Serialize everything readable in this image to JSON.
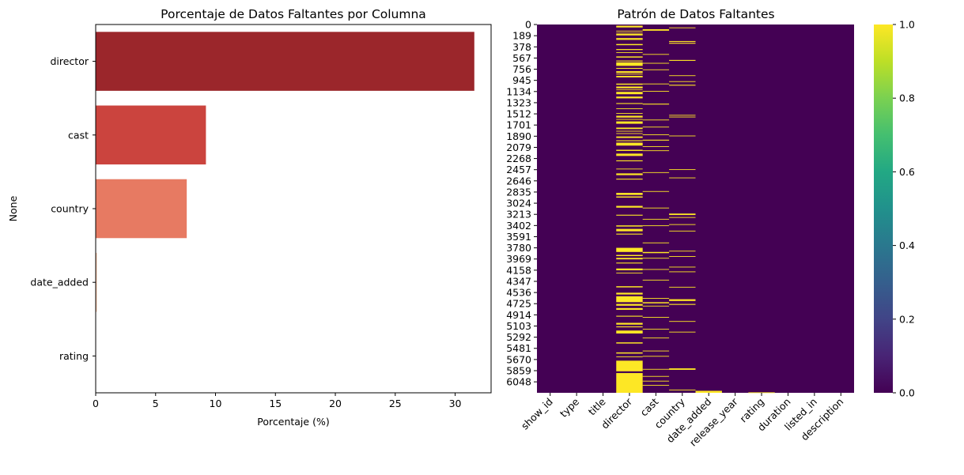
{
  "chart_data": [
    {
      "type": "bar",
      "orientation": "horizontal",
      "title": "Porcentaje de Datos Faltantes por Columna",
      "xlabel": "Porcentaje (%)",
      "ylabel": "None",
      "xlim": [
        0,
        33
      ],
      "xticks": [
        "0",
        "5",
        "10",
        "15",
        "20",
        "25",
        "30"
      ],
      "categories": [
        "director",
        "cast",
        "country",
        "date_added",
        "rating"
      ],
      "values": [
        31.6,
        9.2,
        7.6,
        0.1,
        0.03
      ],
      "colors": [
        "#9b262b",
        "#cb443e",
        "#e77a62",
        "#f4bfa3",
        "#fcefe6"
      ],
      "grid": false
    },
    {
      "type": "heatmap",
      "title": "Patrón de Datos Faltantes",
      "columns": [
        "show_id",
        "type",
        "title",
        "director",
        "cast",
        "country",
        "date_added",
        "release_year",
        "rating",
        "duration",
        "listed_in",
        "description"
      ],
      "row_count": 6234,
      "row_ticks": [
        "0",
        "189",
        "378",
        "567",
        "756",
        "945",
        "1134",
        "1323",
        "1512",
        "1701",
        "1890",
        "2079",
        "2268",
        "2457",
        "2646",
        "2835",
        "3024",
        "3213",
        "3402",
        "3591",
        "3780",
        "3969",
        "4158",
        "4347",
        "4536",
        "4725",
        "4914",
        "5103",
        "5292",
        "5481",
        "5670",
        "5859",
        "6048"
      ],
      "colormap": "viridis",
      "background_color": "#440154",
      "missing_color": "#fde725",
      "missing_rows": {
        "director": [
          [
            20,
            50
          ],
          [
            105,
            115
          ],
          [
            140,
            145
          ],
          [
            160,
            185
          ],
          [
            230,
            260
          ],
          [
            330,
            350
          ],
          [
            415,
            432
          ],
          [
            470,
            475
          ],
          [
            540,
            560
          ],
          [
            610,
            625
          ],
          [
            640,
            700
          ],
          [
            735,
            750
          ],
          [
            790,
            820
          ],
          [
            835,
            842
          ],
          [
            870,
            895
          ],
          [
            1000,
            1020
          ],
          [
            1050,
            1080
          ],
          [
            1100,
            1110
          ],
          [
            1140,
            1180
          ],
          [
            1220,
            1250
          ],
          [
            1330,
            1345
          ],
          [
            1420,
            1432
          ],
          [
            1500,
            1510
          ],
          [
            1545,
            1575
          ],
          [
            1600,
            1605
          ],
          [
            1640,
            1680
          ],
          [
            1745,
            1770
          ],
          [
            1800,
            1812
          ],
          [
            1840,
            1850
          ],
          [
            1895,
            1920
          ],
          [
            1960,
            1975
          ],
          [
            2000,
            2050
          ],
          [
            2120,
            2140
          ],
          [
            2185,
            2225
          ],
          [
            2300,
            2315
          ],
          [
            2440,
            2450
          ],
          [
            2520,
            2550
          ],
          [
            2610,
            2625
          ],
          [
            2850,
            2885
          ],
          [
            2910,
            2930
          ],
          [
            3070,
            3100
          ],
          [
            3220,
            3235
          ],
          [
            3400,
            3420
          ],
          [
            3460,
            3500
          ],
          [
            3540,
            3555
          ],
          [
            3780,
            3850
          ],
          [
            3900,
            3920
          ],
          [
            3950,
            3975
          ],
          [
            4030,
            4045
          ],
          [
            4130,
            4160
          ],
          [
            4200,
            4205
          ],
          [
            4430,
            4450
          ],
          [
            4540,
            4570
          ],
          [
            4600,
            4700
          ],
          [
            4730,
            4760
          ],
          [
            4800,
            4830
          ],
          [
            4930,
            4945
          ],
          [
            5050,
            5080
          ],
          [
            5110,
            5125
          ],
          [
            5180,
            5230
          ],
          [
            5380,
            5400
          ],
          [
            5550,
            5570
          ],
          [
            5620,
            5630
          ],
          [
            5690,
            5870
          ],
          [
            5900,
            6234
          ]
        ],
        "cast": [
          [
            80,
            105
          ],
          [
            500,
            512
          ],
          [
            650,
            660
          ],
          [
            760,
            770
          ],
          [
            1000,
            1010
          ],
          [
            1125,
            1135
          ],
          [
            1340,
            1355
          ],
          [
            1610,
            1620
          ],
          [
            1730,
            1740
          ],
          [
            1860,
            1870
          ],
          [
            1950,
            1965
          ],
          [
            2060,
            2070
          ],
          [
            2130,
            2140
          ],
          [
            2500,
            2510
          ],
          [
            2820,
            2830
          ],
          [
            3100,
            3110
          ],
          [
            3290,
            3300
          ],
          [
            3400,
            3410
          ],
          [
            3690,
            3700
          ],
          [
            3850,
            3870
          ],
          [
            3950,
            3960
          ],
          [
            4140,
            4150
          ],
          [
            4320,
            4330
          ],
          [
            4630,
            4640
          ],
          [
            4700,
            4720
          ],
          [
            4760,
            4770
          ],
          [
            4950,
            4960
          ],
          [
            5150,
            5160
          ],
          [
            5300,
            5310
          ],
          [
            5520,
            5530
          ],
          [
            5610,
            5620
          ],
          [
            5830,
            5840
          ],
          [
            5950,
            5960
          ],
          [
            6030,
            6040
          ],
          [
            6100,
            6110
          ]
        ],
        "country": [
          [
            50,
            60
          ],
          [
            280,
            295
          ],
          [
            310,
            325
          ],
          [
            600,
            615
          ],
          [
            860,
            870
          ],
          [
            960,
            970
          ],
          [
            1020,
            1035
          ],
          [
            1530,
            1540
          ],
          [
            1560,
            1570
          ],
          [
            1880,
            1890
          ],
          [
            2450,
            2460
          ],
          [
            2590,
            2600
          ],
          [
            3200,
            3225
          ],
          [
            3260,
            3270
          ],
          [
            3380,
            3390
          ],
          [
            3490,
            3500
          ],
          [
            3830,
            3840
          ],
          [
            3920,
            3930
          ],
          [
            4100,
            4110
          ],
          [
            4180,
            4190
          ],
          [
            4440,
            4450
          ],
          [
            4650,
            4680
          ],
          [
            4730,
            4745
          ],
          [
            5020,
            5030
          ],
          [
            5200,
            5210
          ],
          [
            5820,
            5845
          ],
          [
            6180,
            6190
          ]
        ],
        "date_added": [
          [
            6200,
            6234
          ]
        ],
        "rating": [
          [
            6226,
            6228
          ]
        ]
      },
      "colorbar": {
        "ticks": [
          "0.0",
          "0.2",
          "0.4",
          "0.6",
          "0.8",
          "1.0"
        ],
        "vmin": 0,
        "vmax": 1
      }
    }
  ]
}
